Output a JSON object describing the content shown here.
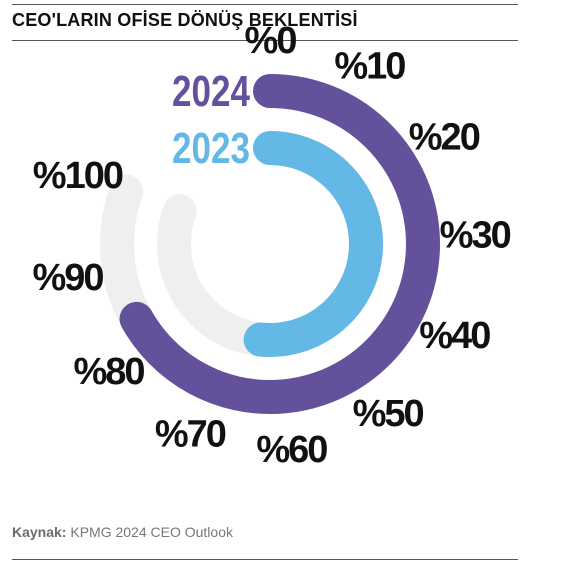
{
  "title": "CEO'LARIN OFİSE DÖNÜŞ BEKLENTİSİ",
  "source": {
    "label": "Kaynak:",
    "text": "KPMG 2024 CEO Outlook"
  },
  "chart_data": {
    "type": "radial-bar",
    "title": "CEO'LARIN OFİSE DÖNÜŞ BEKLENTİSİ",
    "tick_labels": [
      "%0",
      "%10",
      "%20",
      "%30",
      "%40",
      "%50",
      "%60",
      "%70",
      "%80",
      "%90",
      "%100"
    ],
    "axis_range": [
      0,
      100
    ],
    "series": [
      {
        "name": "2024",
        "value": 83,
        "color": "#63519c"
      },
      {
        "name": "2023",
        "value": 64,
        "color": "#63b8e6"
      }
    ],
    "track_color": "#efefef",
    "legend_placement": "left-of-arcs"
  }
}
